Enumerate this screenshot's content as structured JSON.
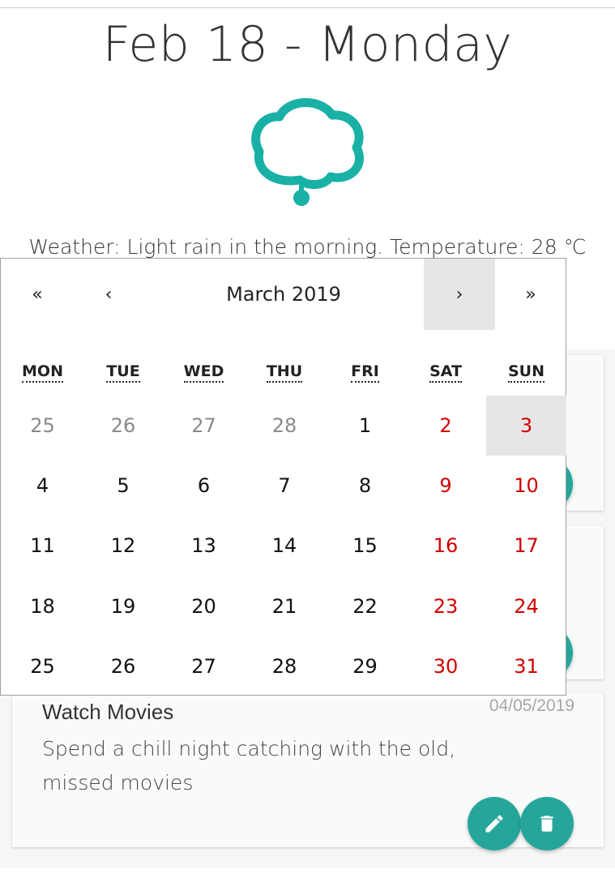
{
  "header": {
    "date_title": "Feb 18 - Monday",
    "weather_icon": "cloud-icon",
    "weather_text": "Weather: Light rain in the morning. Temperature: 28 ℃",
    "accent_color": "#19b1a6"
  },
  "calendar": {
    "nav": {
      "prev2": "«",
      "prev": "‹",
      "label": "March 2019",
      "next": "›",
      "next2": "»"
    },
    "weekdays": [
      "MON",
      "TUE",
      "WED",
      "THU",
      "FRI",
      "SAT",
      "SUN"
    ],
    "weeks": [
      [
        "25",
        "26",
        "27",
        "28",
        "1",
        "2",
        "3"
      ],
      [
        "4",
        "5",
        "6",
        "7",
        "8",
        "9",
        "10"
      ],
      [
        "11",
        "12",
        "13",
        "14",
        "15",
        "16",
        "17"
      ],
      [
        "18",
        "19",
        "20",
        "21",
        "22",
        "23",
        "24"
      ],
      [
        "25",
        "26",
        "27",
        "28",
        "29",
        "30",
        "31"
      ]
    ],
    "weekend_color": "#d10000",
    "neighbor_color": "#8a8a8a"
  },
  "todos": [
    {
      "title": "Watch Movies",
      "date": "04/05/2019",
      "description": "Spend a chill night catching with the old, missed movies",
      "edit_icon": "pencil-icon",
      "delete_icon": "trash-icon"
    }
  ],
  "fab_color": "#26a69a"
}
